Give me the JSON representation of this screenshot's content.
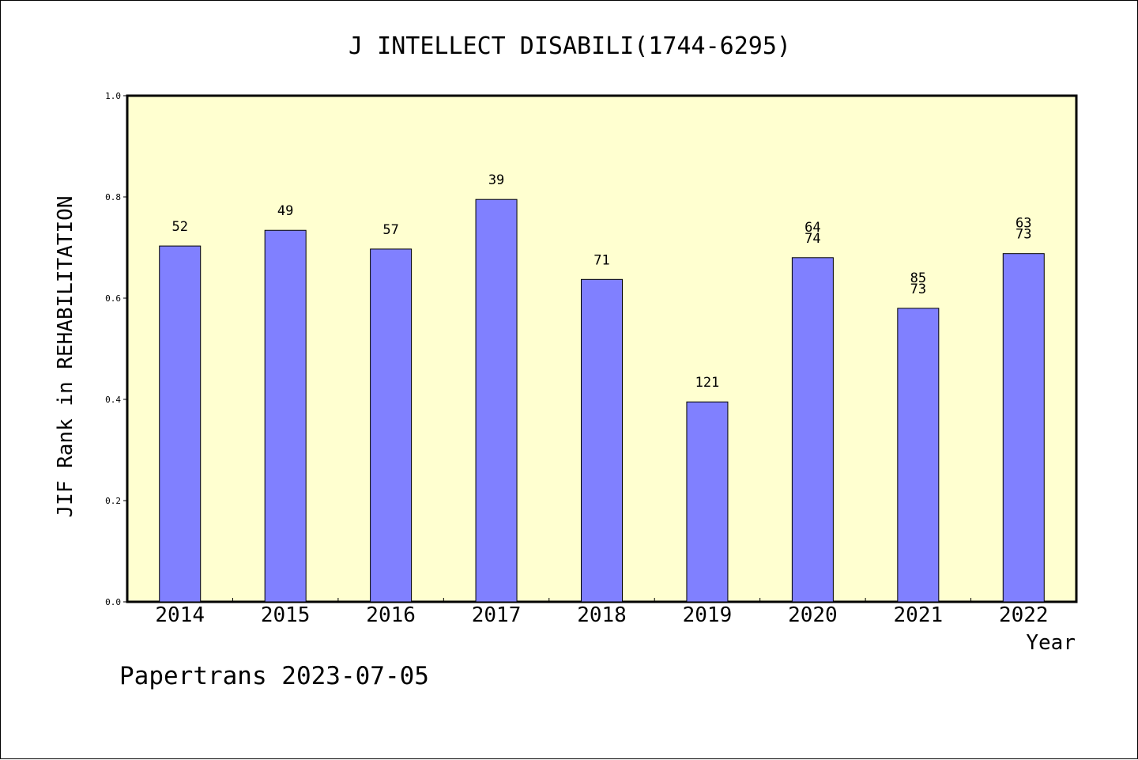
{
  "chart_data": {
    "type": "bar",
    "title": "J INTELLECT DISABILI(1744-6295)",
    "xlabel": "Year",
    "ylabel": "JIF Rank in REHABILITATION",
    "ylim": [
      0,
      1.0
    ],
    "yticks": [
      "0.0",
      "0.2",
      "0.4",
      "0.6",
      "0.8",
      "1.0"
    ],
    "categories": [
      "2014",
      "2015",
      "2016",
      "2017",
      "2018",
      "2019",
      "2020",
      "2021",
      "2022"
    ],
    "values": [
      0.703,
      0.734,
      0.697,
      0.795,
      0.637,
      0.395,
      0.68,
      0.58,
      0.688
    ],
    "data_labels": [
      [
        "52"
      ],
      [
        "49"
      ],
      [
        "57"
      ],
      [
        "39"
      ],
      [
        "71"
      ],
      [
        "121"
      ],
      [
        "64",
        "74"
      ],
      [
        "85",
        "73"
      ],
      [
        "63",
        "73"
      ]
    ],
    "grid": false,
    "legend": "none",
    "colors": {
      "bar": "#8080ff",
      "plot_background": "#ffffd0",
      "axis": "#000000"
    }
  },
  "footer": {
    "credit": "Papertrans 2023-07-05"
  }
}
